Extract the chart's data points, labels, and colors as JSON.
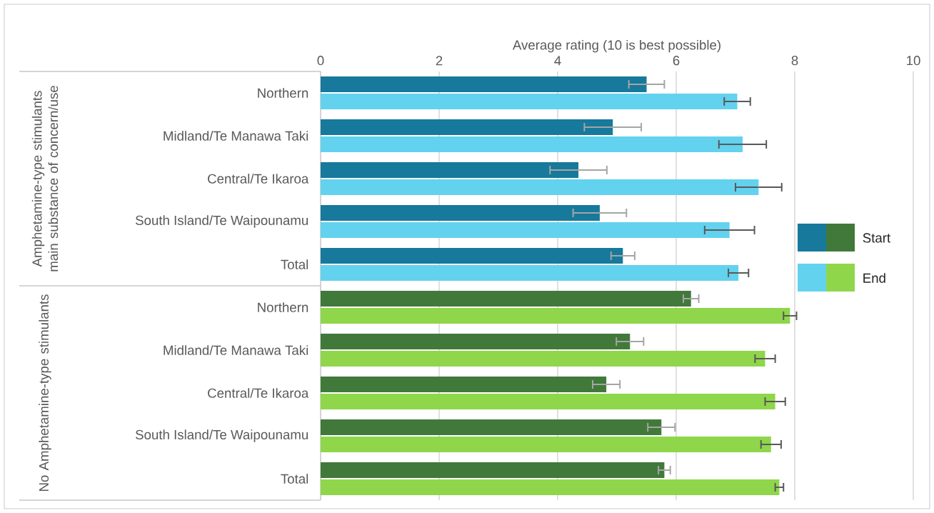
{
  "chart_data": {
    "type": "bar",
    "orientation": "horizontal",
    "xlabel": "Average rating (10 is best possible)",
    "categories": [
      "Northern",
      "Midland/Te Manawa Taki",
      "Central/Te Ikaroa",
      "South Island/Te Waipounamu",
      "Total",
      "Northern",
      "Midland/Te Manawa Taki",
      "Central/Te Ikaroa",
      "South Island/Te Waipounamu",
      "Total"
    ],
    "series": [
      {
        "name": "Start",
        "colors": [
          "#17799b",
          "#17799b",
          "#17799b",
          "#17799b",
          "#17799b",
          "#41793a",
          "#41793a",
          "#41793a",
          "#41793a",
          "#41793a"
        ],
        "values": [
          5.5,
          4.93,
          4.35,
          4.71,
          5.1,
          6.25,
          5.22,
          4.82,
          5.75,
          5.8
        ],
        "errors": [
          0.3,
          0.48,
          0.48,
          0.45,
          0.2,
          0.13,
          0.23,
          0.23,
          0.23,
          0.1
        ]
      },
      {
        "name": "End",
        "colors": [
          "#62d2ee",
          "#62d2ee",
          "#62d2ee",
          "#62d2ee",
          "#62d2ee",
          "#8fd64b",
          "#8fd64b",
          "#8fd64b",
          "#8fd64b",
          "#8fd64b"
        ],
        "values": [
          7.03,
          7.12,
          7.39,
          6.9,
          7.05,
          7.92,
          7.5,
          7.67,
          7.6,
          7.74
        ],
        "errors": [
          0.22,
          0.4,
          0.39,
          0.42,
          0.17,
          0.11,
          0.17,
          0.17,
          0.17,
          0.07
        ]
      }
    ],
    "annotations": [
      "Amphetamine-type stimulants main substance of concern/use",
      "No Amphetamine-type stimulants"
    ],
    "xlim": [
      0,
      10
    ],
    "xticks": [
      0,
      2,
      4,
      6,
      8,
      10
    ],
    "grid": "x",
    "legend": "right"
  }
}
